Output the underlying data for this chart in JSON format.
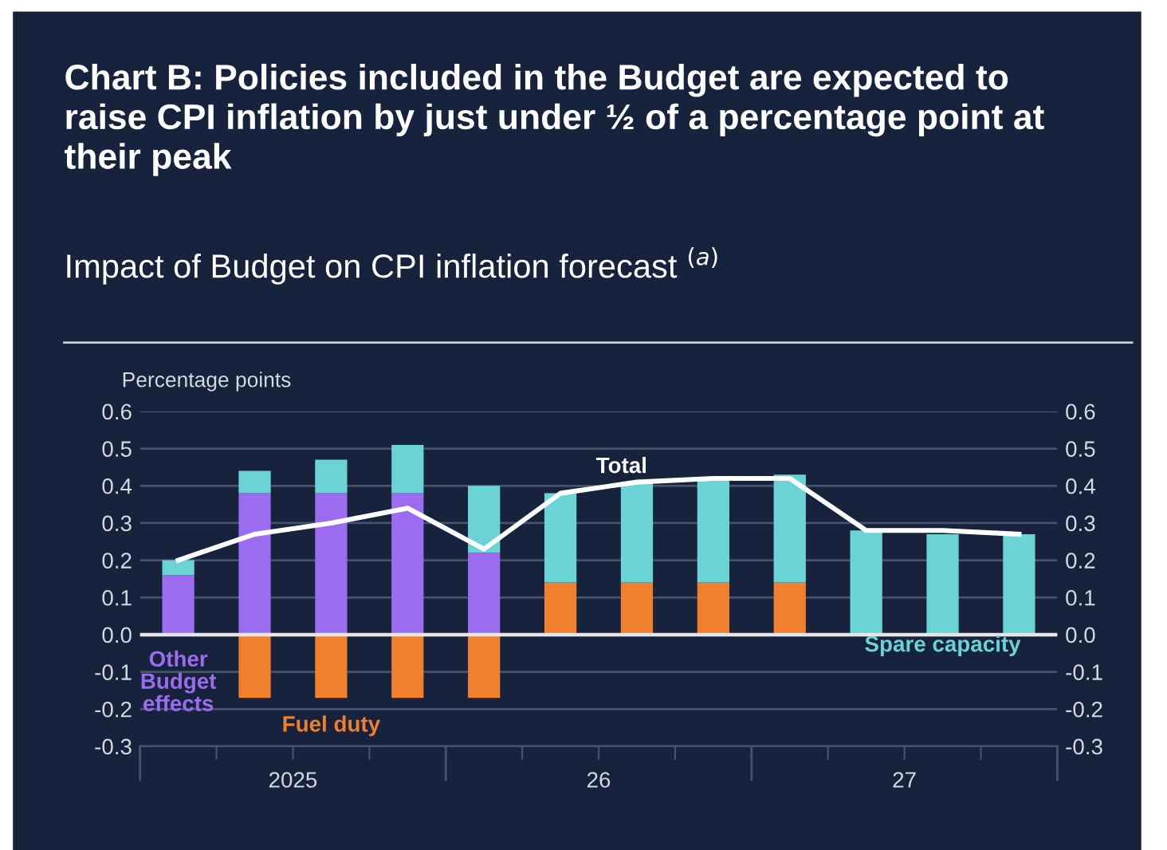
{
  "chart_data": {
    "type": "bar",
    "stacked": true,
    "title": "Chart B: Policies included in the Budget are expected to raise CPI inflation by just under ½ of a percentage point at their peak",
    "subtitle": "Impact of Budget on CPI inflation forecast $^{(a)}$",
    "ylabel": "Percentage points",
    "categories": [
      null,
      null,
      null,
      null,
      null,
      null,
      null,
      null,
      null,
      null,
      null,
      null
    ],
    "annotations": [
      "2025",
      "26",
      "27"
    ],
    "series": [
      {
        "name": "Other Budget effects",
        "color": "#9b6cf0",
        "values": [
          0.16,
          0.38,
          0.38,
          0.38,
          0.22,
          null,
          null,
          null,
          null,
          null,
          null,
          null
        ]
      },
      {
        "name": "Fuel duty",
        "color": "#f07f2e",
        "values": [
          null,
          -0.17,
          -0.17,
          -0.17,
          -0.17,
          0.14,
          0.14,
          0.14,
          0.14,
          null,
          null,
          null
        ]
      },
      {
        "name": "Spare capacity",
        "color": "#6ad3d6",
        "values": [
          0.04,
          0.06,
          0.09,
          0.13,
          0.18,
          0.24,
          0.27,
          0.28,
          0.29,
          0.28,
          0.27,
          0.27
        ]
      },
      {
        "name": "Total",
        "type": "line",
        "color": "#ffffff",
        "values": [
          0.2,
          0.27,
          0.3,
          0.34,
          0.23,
          0.38,
          0.41,
          0.42,
          0.42,
          0.28,
          0.28,
          0.27
        ]
      }
    ],
    "ylim": [
      -0.3,
      0.6
    ],
    "yticks": [
      {
        "value": -0.3,
        "label": "-0.3"
      },
      {
        "value": -0.2,
        "label": "-0.2"
      },
      {
        "value": -0.1,
        "label": "-0.1"
      },
      {
        "value": 0,
        "label": "0.0"
      },
      {
        "value": 0.1,
        "label": "0.1"
      },
      {
        "value": 0.2,
        "label": "0.2"
      },
      {
        "value": 0.3,
        "label": "0.3"
      },
      {
        "value": 0.4,
        "label": "0.4"
      },
      {
        "value": 0.5,
        "label": "0.5"
      },
      {
        "value": 0.6,
        "label": "0.6"
      }
    ],
    "y2lim": [
      -0.3,
      0.6
    ],
    "y2ticks": [
      {
        "value": -0.3,
        "label": "-0.3"
      },
      {
        "value": -0.2,
        "label": "-0.2"
      },
      {
        "value": -0.1,
        "label": "-0.1"
      },
      {
        "value": 0,
        "label": "0.0"
      },
      {
        "value": 0.1,
        "label": "0.1"
      },
      {
        "value": 0.2,
        "label": "0.2"
      },
      {
        "value": 0.3,
        "label": "0.3"
      },
      {
        "value": 0.4,
        "label": "0.4"
      },
      {
        "value": 0.5,
        "label": "0.5"
      },
      {
        "value": 0.6,
        "label": "0.6"
      }
    ],
    "ref_lines": [
      {
        "axis": "y",
        "value": 0,
        "color": "#e6e6e6"
      }
    ],
    "grid": "y",
    "legend": false,
    "marker": "none",
    "line_style": "solid"
  }
}
